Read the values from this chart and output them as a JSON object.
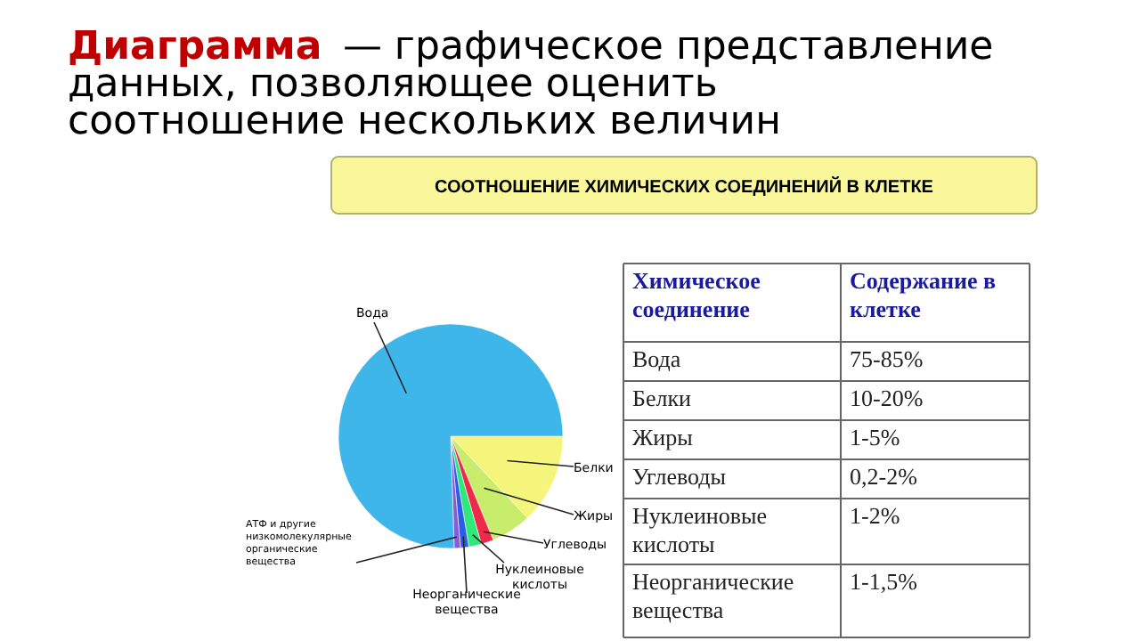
{
  "chart_data": {
    "type": "pie",
    "title": "Диаграмма — графическое представление данных, позволяющее оценить соотношение нескольких величин",
    "subtitle": "СООТНОШЕНИЕ ХИМИЧЕСКИХ СОЕДИНЕНИЙ В КЛЕТКЕ",
    "categories": [
      "Белки",
      "Жиры",
      "Углеводы",
      "Нуклеиновые кислоты",
      "Неорганические вещества",
      "АТФ и другие низкомолекулярные органические вещества",
      "Вода"
    ],
    "values": [
      13,
      5.8,
      1.8,
      1.8,
      1.2,
      0.9,
      75.5
    ],
    "colors": [
      "#f4f57a",
      "#c8ec6c",
      "#ee2a4a",
      "#2ee87a",
      "#2a5ee8",
      "#8a5ad8",
      "#3fb6ea"
    ],
    "annotations": [
      "Химическое соединение",
      "Содержание в клетке",
      "Вода",
      "75-85%",
      "Белки",
      "10-20%",
      "Жиры",
      "1-5%",
      "Углеводы",
      "0,2-2%",
      "Нуклеиновые кислоты",
      "1-2%",
      "Неорганические вещества",
      "1-1,5%"
    ]
  }
}
